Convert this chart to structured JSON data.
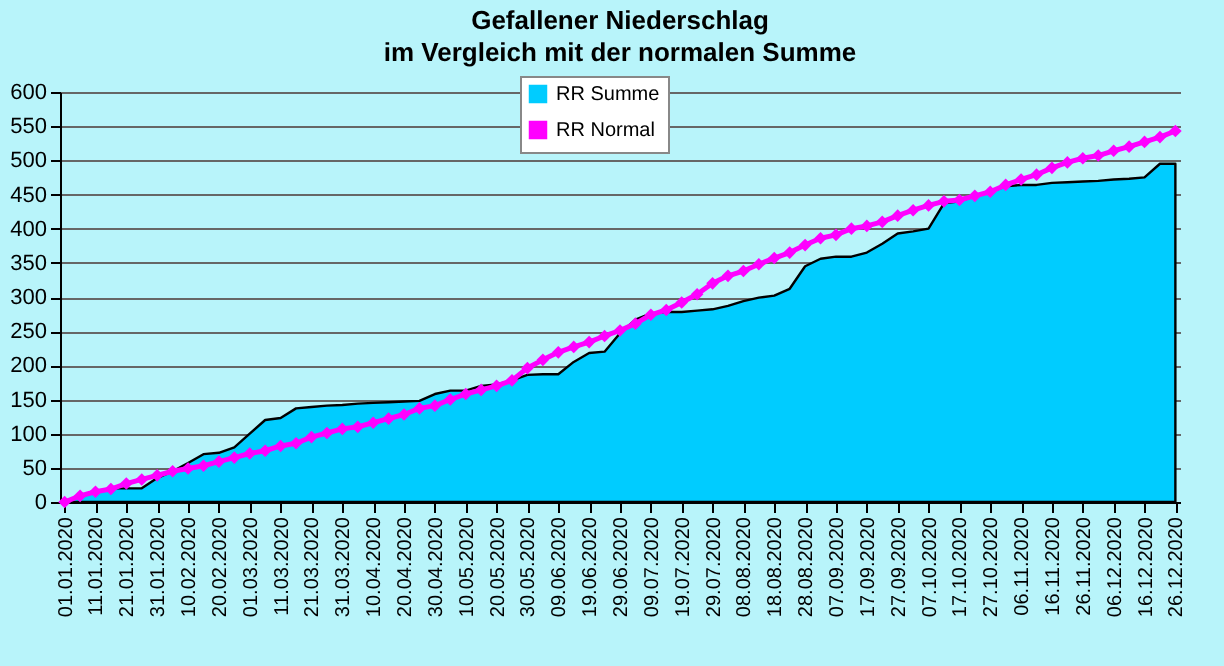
{
  "chart_data": {
    "type": "area",
    "title": "Gefallener Niederschlag",
    "subtitle": "im Vergleich mit der normalen Summe",
    "categories": [
      "01.01.2020",
      null,
      "11.01.2020",
      null,
      "21.01.2020",
      null,
      "31.01.2020",
      null,
      "10.02.2020",
      null,
      "20.02.2020",
      null,
      "01.03.2020",
      null,
      "11.03.2020",
      null,
      "21.03.2020",
      null,
      "31.03.2020",
      null,
      "10.04.2020",
      null,
      "20.04.2020",
      null,
      "30.04.2020",
      null,
      "10.05.2020",
      null,
      "20.05.2020",
      null,
      "30.05.2020",
      null,
      "09.06.2020",
      null,
      "19.06.2020",
      null,
      "29.06.2020",
      null,
      "09.07.2020",
      null,
      "19.07.2020",
      null,
      "29.07.2020",
      null,
      "08.08.2020",
      null,
      "18.08.2020",
      null,
      "28.08.2020",
      null,
      "07.09.2020",
      null,
      "17.09.2020",
      null,
      "27.09.2020",
      null,
      "07.10.2020",
      null,
      "17.10.2020",
      null,
      "27.10.2020",
      null,
      "06.11.2020",
      null,
      "16.11.2020",
      null,
      "26.11.2020",
      null,
      "06.12.2020",
      null,
      "16.12.2020",
      null,
      "26.12.2020"
    ],
    "series": [
      {
        "name": "RR Summe",
        "color": "#00ccff",
        "values": [
          0,
          9,
          15,
          20,
          20,
          20,
          35,
          45,
          57,
          70,
          72,
          80,
          100,
          120,
          123,
          137,
          139,
          141,
          142,
          144,
          145,
          146,
          147,
          148,
          158,
          163,
          163,
          170,
          172,
          178,
          186,
          187,
          187,
          205,
          218,
          220,
          247,
          267,
          276,
          278,
          278,
          280,
          282,
          287,
          294,
          299,
          302,
          312,
          345,
          356,
          359,
          359,
          365,
          378,
          393,
          396,
          400,
          437,
          440,
          448,
          454,
          462,
          464,
          464,
          467,
          468,
          469,
          470,
          472,
          473,
          475,
          495,
          495
        ]
      },
      {
        "name": "RR Normal",
        "type": "line",
        "color": "#ff00ff",
        "marker": "diamond",
        "values": [
          0,
          9,
          15,
          19,
          27,
          33,
          39,
          45,
          49,
          53,
          59,
          65,
          71,
          75,
          82,
          86,
          95,
          101,
          107,
          110,
          116,
          122,
          128,
          137,
          141,
          150,
          158,
          164,
          170,
          178,
          196,
          208,
          219,
          227,
          234,
          243,
          251,
          261,
          274,
          281,
          292,
          304,
          320,
          331,
          338,
          348,
          357,
          365,
          376,
          386,
          391,
          400,
          404,
          410,
          419,
          427,
          434,
          440,
          442,
          448,
          454,
          464,
          472,
          479,
          489,
          497,
          503,
          507,
          514,
          520,
          527,
          534,
          543
        ]
      }
    ],
    "ylim": [
      0,
      600
    ],
    "yticks": [
      0,
      50,
      100,
      150,
      200,
      250,
      300,
      350,
      400,
      450,
      500,
      550,
      600
    ],
    "grid": "y",
    "legend": "top"
  }
}
